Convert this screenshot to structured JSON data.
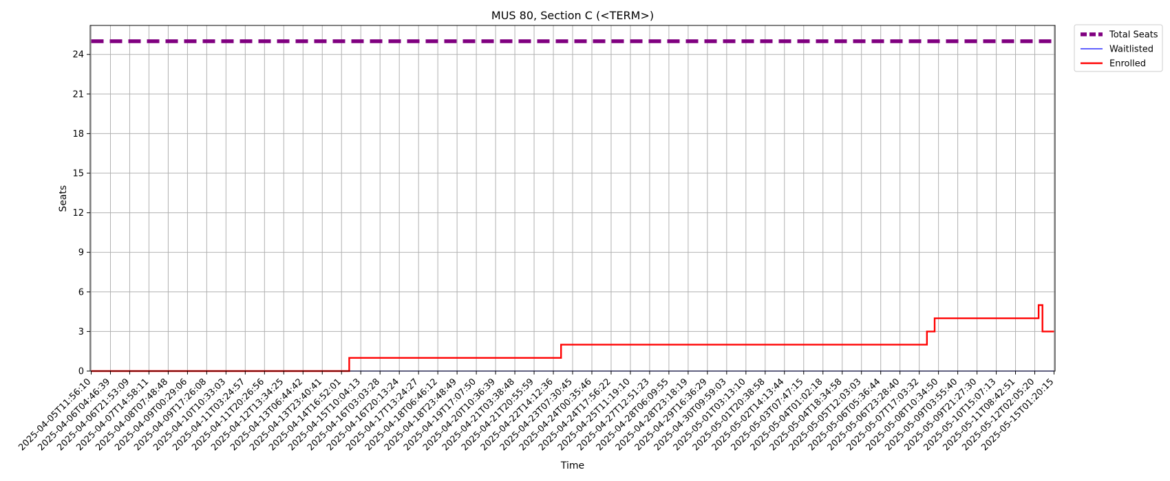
{
  "chart_data": {
    "type": "line",
    "title": "MUS 80, Section C (<TERM>)",
    "xlabel": "Time",
    "ylabel": "Seats",
    "ylim": [
      0,
      26.2
    ],
    "yticks": [
      0,
      3,
      6,
      9,
      12,
      15,
      18,
      21,
      24
    ],
    "grid": true,
    "legend_position": "outside-top-right",
    "x": [
      "2025-04-05T11:56:10",
      "2025-04-06T04:46:39",
      "2025-04-06T21:53:09",
      "2025-04-07T14:58:11",
      "2025-04-08T07:48:48",
      "2025-04-09T00:29:06",
      "2025-04-09T17:26:08",
      "2025-04-10T10:33:03",
      "2025-04-11T03:24:57",
      "2025-04-11T20:26:56",
      "2025-04-12T13:34:25",
      "2025-04-13T06:44:42",
      "2025-04-13T23:40:41",
      "2025-04-14T16:52:01",
      "2025-04-15T10:04:13",
      "2025-04-16T03:03:28",
      "2025-04-16T20:13:24",
      "2025-04-17T13:24:27",
      "2025-04-18T06:46:12",
      "2025-04-18T23:48:49",
      "2025-04-19T17:07:50",
      "2025-04-20T10:36:39",
      "2025-04-21T03:38:48",
      "2025-04-21T20:55:59",
      "2025-04-22T14:12:36",
      "2025-04-23T07:30:45",
      "2025-04-24T00:35:46",
      "2025-04-24T17:56:22",
      "2025-04-25T11:19:10",
      "2025-04-27T12:51:23",
      "2025-04-28T06:09:55",
      "2025-04-28T23:18:19",
      "2025-04-29T16:36:29",
      "2025-04-30T09:59:03",
      "2025-05-01T03:13:10",
      "2025-05-01T20:38:58",
      "2025-05-02T14:13:44",
      "2025-05-03T07:47:15",
      "2025-05-04T01:02:18",
      "2025-05-04T18:34:58",
      "2025-05-05T12:03:03",
      "2025-05-06T05:36:44",
      "2025-05-06T23:28:40",
      "2025-05-07T17:03:32",
      "2025-05-08T10:34:50",
      "2025-05-09T03:55:40",
      "2025-05-09T21:27:30",
      "2025-05-10T15:07:13",
      "2025-05-11T08:42:51",
      "2025-05-12T02:05:20",
      "2025-05-15T01:20:15"
    ],
    "series": [
      {
        "name": "Total Seats",
        "color": "#800080",
        "style": "dashed",
        "values": [
          25,
          25,
          25,
          25,
          25,
          25,
          25,
          25,
          25,
          25,
          25,
          25,
          25,
          25,
          25,
          25,
          25,
          25,
          25,
          25,
          25,
          25,
          25,
          25,
          25,
          25,
          25,
          25,
          25,
          25,
          25,
          25,
          25,
          25,
          25,
          25,
          25,
          25,
          25,
          25,
          25,
          25,
          25,
          25,
          25,
          25,
          25,
          25,
          25,
          25,
          25
        ]
      },
      {
        "name": "Waitlisted",
        "color": "#0000ff",
        "style": "solid",
        "values": [
          0,
          0,
          0,
          0,
          0,
          0,
          0,
          0,
          0,
          0,
          0,
          0,
          0,
          0,
          0,
          0,
          0,
          0,
          0,
          0,
          0,
          0,
          0,
          0,
          0,
          0,
          0,
          0,
          0,
          0,
          0,
          0,
          0,
          0,
          0,
          0,
          0,
          0,
          0,
          0,
          0,
          0,
          0,
          0,
          0,
          0,
          0,
          0,
          0,
          0,
          0
        ]
      },
      {
        "name": "Enrolled",
        "color": "#ff0000",
        "style": "solid",
        "values": [
          0,
          0,
          0,
          0,
          0,
          0,
          0,
          0,
          0,
          0,
          0,
          0,
          0,
          0,
          1,
          1,
          1,
          1,
          1,
          1,
          1,
          1,
          1,
          1,
          1,
          2,
          2,
          2,
          2,
          2,
          2,
          2,
          2,
          2,
          2,
          2,
          2,
          2,
          2,
          2,
          2,
          2,
          2,
          4,
          4,
          4,
          4,
          4,
          4,
          4,
          3
        ]
      }
    ],
    "enrolled_steps": [
      {
        "at_tick": 13.4,
        "value": 1
      },
      {
        "at_tick": 24.4,
        "value": 2
      },
      {
        "at_tick": 43.4,
        "value": 3
      },
      {
        "at_tick": 43.8,
        "value": 4
      },
      {
        "at_tick": 49.2,
        "value": 5
      },
      {
        "at_tick": 49.4,
        "value": 3
      }
    ]
  }
}
